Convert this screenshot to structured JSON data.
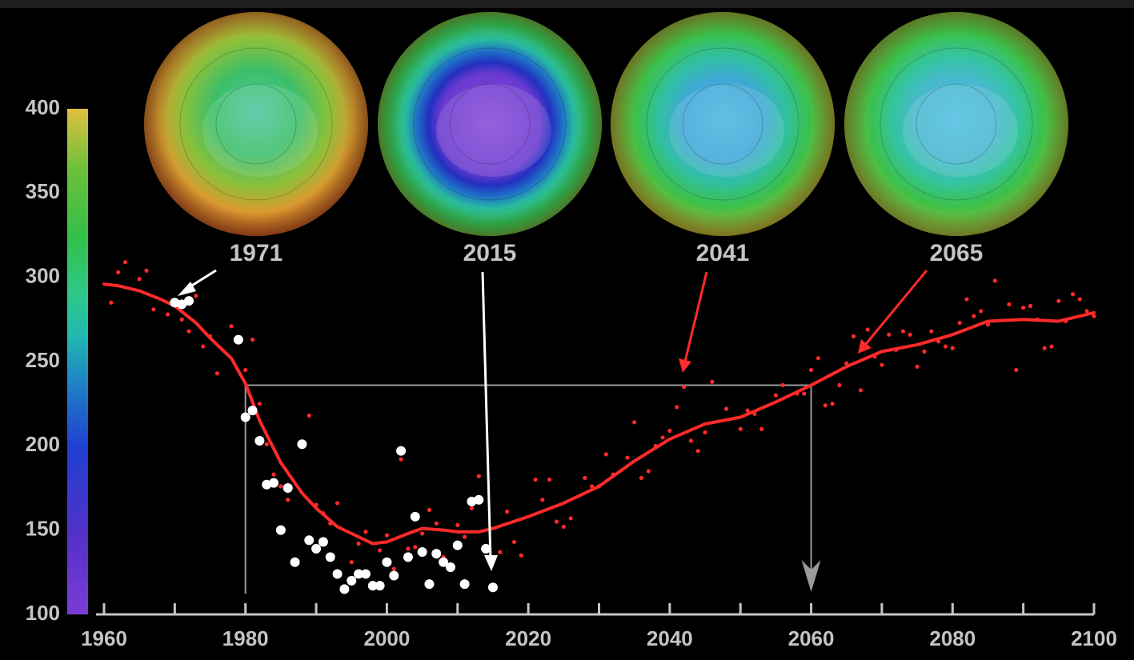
{
  "chart_data": {
    "type": "scatter",
    "xlim": [
      1960,
      2100
    ],
    "ylim": [
      100,
      400
    ],
    "xticks": [
      1960,
      1980,
      2000,
      2020,
      2040,
      2060,
      2080,
      2100
    ],
    "xminorticks": [
      1970,
      1990,
      2010,
      2030,
      2050,
      2070,
      2090
    ],
    "yticks": [
      100,
      150,
      200,
      250,
      300,
      350,
      400
    ],
    "snapshots": [
      "1971",
      "2015",
      "2041",
      "2065"
    ],
    "reference": {
      "level": 236,
      "from": 1980,
      "to": 2060,
      "color": "#9a9a9a"
    },
    "series": [
      {
        "type": "scatter",
        "color": "#ff2a2a",
        "size": 2.6,
        "x": [
          1961,
          1962,
          1963,
          1965,
          1966,
          1967,
          1969,
          1971,
          1972,
          1973,
          1974,
          1975,
          1976,
          1978,
          1979,
          1980,
          1981,
          1982,
          1983,
          1984,
          1985,
          1986,
          1988,
          1989,
          1990,
          1991,
          1992,
          1993,
          1995,
          1996,
          1997,
          1999,
          2000,
          2001,
          2002,
          2003,
          2004,
          2005,
          2006,
          2007,
          2008,
          2009,
          2010,
          2011,
          2012,
          2013,
          2014,
          2016,
          2017,
          2018,
          2019,
          2021,
          2022,
          2023,
          2024,
          2025,
          2026,
          2028,
          2029,
          2030,
          2031,
          2032,
          2034,
          2035,
          2036,
          2037,
          2038,
          2039,
          2040,
          2041,
          2042,
          2043,
          2044,
          2045,
          2046,
          2048,
          2050,
          2051,
          2052,
          2053,
          2055,
          2056,
          2058,
          2059,
          2060,
          2061,
          2062,
          2063,
          2064,
          2065,
          2066,
          2067,
          2068,
          2069,
          2070,
          2071,
          2072,
          2073,
          2074,
          2075,
          2076,
          2077,
          2078,
          2079,
          2080,
          2081,
          2082,
          2083,
          2084,
          2085,
          2086,
          2088,
          2089,
          2090,
          2091,
          2092,
          2093,
          2094,
          2095,
          2096,
          2097,
          2098,
          2099,
          2100
        ],
        "values": [
          285,
          303,
          309,
          299,
          304,
          281,
          278,
          275,
          268,
          289,
          259,
          265,
          243,
          271,
          264,
          245,
          263,
          225,
          201,
          183,
          176,
          168,
          201,
          218,
          165,
          160,
          154,
          166,
          131,
          142,
          149,
          138,
          147,
          127,
          192,
          139,
          140,
          148,
          162,
          154,
          134,
          128,
          153,
          146,
          163,
          182,
          140,
          137,
          161,
          143,
          135,
          180,
          168,
          180,
          155,
          152,
          157,
          181,
          176,
          176,
          195,
          183,
          193,
          214,
          181,
          185,
          200,
          205,
          209,
          223,
          235,
          203,
          197,
          208,
          238,
          222,
          210,
          221,
          219,
          210,
          230,
          236,
          231,
          231,
          245,
          252,
          224,
          225,
          236,
          249,
          265,
          233,
          269,
          253,
          248,
          266,
          257,
          268,
          266,
          247,
          256,
          268,
          262,
          259,
          258,
          273,
          287,
          277,
          280,
          272,
          298,
          284,
          245,
          282,
          283,
          275,
          258,
          259,
          286,
          274,
          290,
          287,
          280,
          277
        ]
      },
      {
        "type": "line",
        "color": "#ff2a2a",
        "x": [
          1960,
          1962,
          1965,
          1968,
          1970,
          1973,
          1975,
          1978,
          1980,
          1982,
          1985,
          1988,
          1990,
          1993,
          1995,
          1998,
          2000,
          2003,
          2005,
          2008,
          2010,
          2013,
          2015,
          2020,
          2025,
          2030,
          2035,
          2040,
          2045,
          2050,
          2055,
          2060,
          2065,
          2070,
          2075,
          2080,
          2085,
          2090,
          2095,
          2100
        ],
        "values": [
          296,
          295,
          292,
          287,
          283,
          273,
          264,
          252,
          237,
          215,
          190,
          172,
          163,
          152,
          148,
          142,
          143,
          148,
          151,
          150,
          149,
          149,
          151,
          158,
          166,
          176,
          191,
          204,
          213,
          217,
          226,
          236,
          247,
          256,
          260,
          266,
          274,
          275,
          274,
          279
        ]
      },
      {
        "type": "scatter",
        "color": "#ffffff",
        "size": 6,
        "x": [
          1970,
          1971,
          1972,
          1979,
          1980,
          1981,
          1982,
          1983,
          1984,
          1985,
          1986,
          1987,
          1988,
          1989,
          1990,
          1991,
          1992,
          1993,
          1994,
          1995,
          1996,
          1997,
          1998,
          1999,
          2000,
          2001,
          2002,
          2003,
          2004,
          2005,
          2006,
          2007,
          2008,
          2009,
          2010,
          2011,
          2012,
          2013,
          2014,
          2015
        ],
        "values": [
          285,
          284,
          286,
          263,
          217,
          221,
          203,
          177,
          178,
          150,
          175,
          131,
          201,
          144,
          139,
          143,
          134,
          124,
          115,
          120,
          124,
          124,
          117,
          117,
          131,
          123,
          197,
          134,
          158,
          137,
          118,
          136,
          131,
          128,
          141,
          118,
          167,
          168,
          139,
          116
        ]
      }
    ]
  }
}
